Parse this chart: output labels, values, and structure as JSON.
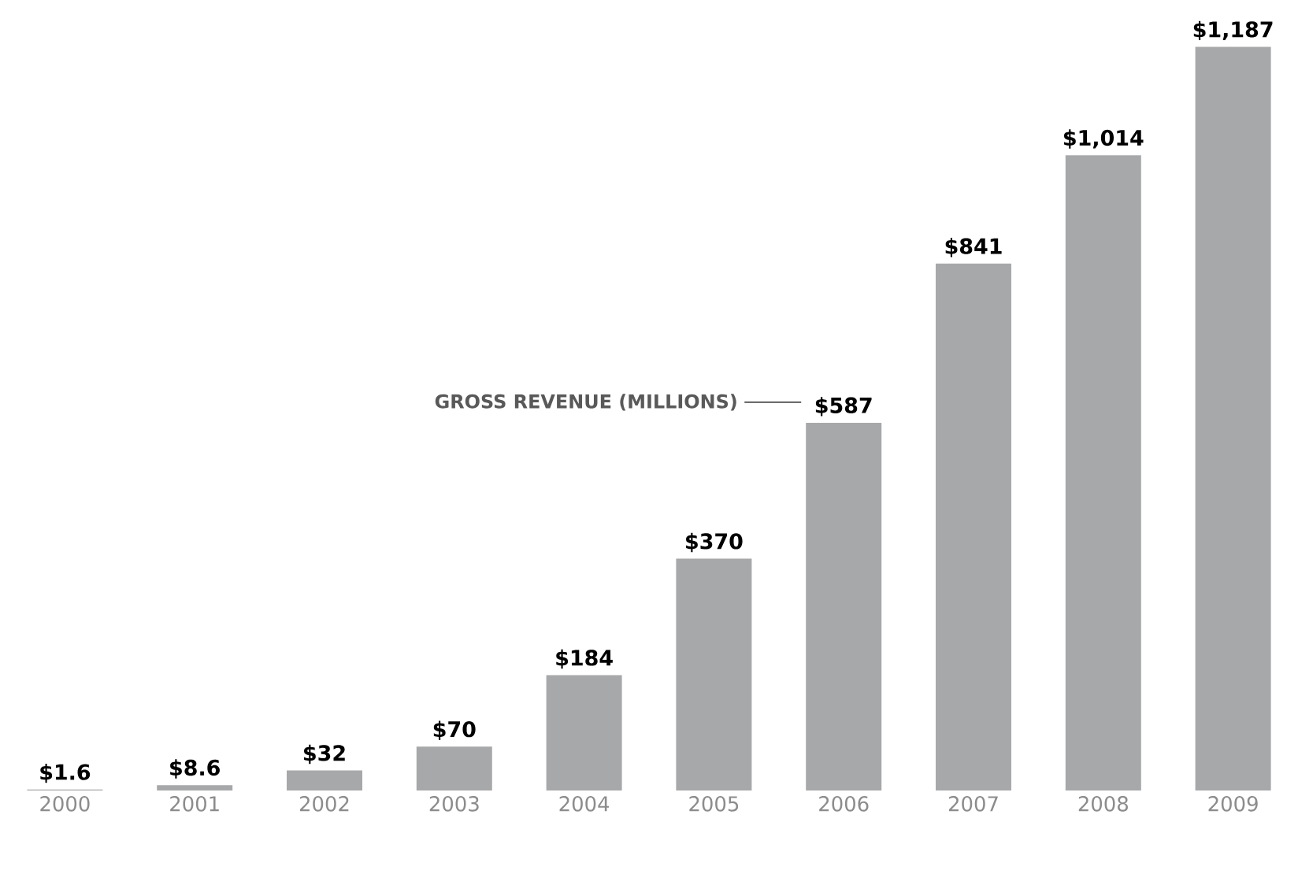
{
  "chart_data": {
    "type": "bar",
    "categories": [
      "2000",
      "2001",
      "2002",
      "2003",
      "2004",
      "2005",
      "2006",
      "2007",
      "2008",
      "2009"
    ],
    "values": [
      1.6,
      8.6,
      32,
      70,
      184,
      370,
      587,
      841,
      1014,
      1187
    ],
    "value_labels": [
      "$1.6",
      "$8.6",
      "$32",
      "$70",
      "$184",
      "$370",
      "$587",
      "$841",
      "$1,014",
      "$1,187"
    ],
    "color": "#a7a8aa",
    "annotations": [
      "GROSS REVENUE (MILLIONS)"
    ]
  }
}
